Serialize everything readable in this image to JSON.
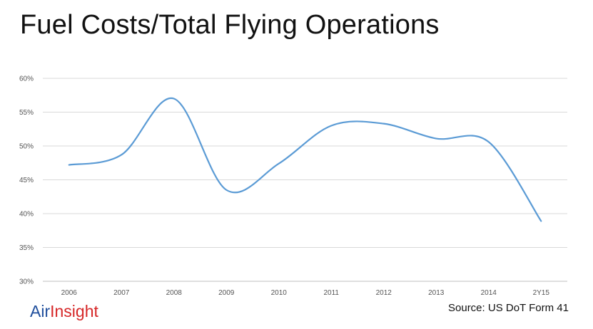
{
  "title": "Fuel Costs/Total Flying Operations",
  "brand": {
    "part1": "Air",
    "part2": "Insight",
    "color1": "#1f4e9c",
    "color2": "#d62728"
  },
  "source": "Source: US DoT Form 41",
  "chart_data": {
    "type": "line",
    "title": "Fuel Costs/Total Flying Operations",
    "categories": [
      "2006",
      "2007",
      "2008",
      "2009",
      "2010",
      "2011",
      "2012",
      "2013",
      "2014",
      "2Y15"
    ],
    "series": [
      {
        "values": [
          47.2,
          48.7,
          57.0,
          43.5,
          47.4,
          53.0,
          53.3,
          51.1,
          50.6,
          38.9
        ],
        "color": "#5b9bd5"
      }
    ],
    "ylim": [
      30,
      60
    ],
    "yticks": [
      "30%",
      "35%",
      "40%",
      "45%",
      "50%",
      "55%",
      "60%"
    ],
    "ytick_values": [
      30,
      35,
      40,
      45,
      50,
      55,
      60
    ],
    "xlabel": "",
    "ylabel": "",
    "grid": true,
    "legend": "none"
  }
}
